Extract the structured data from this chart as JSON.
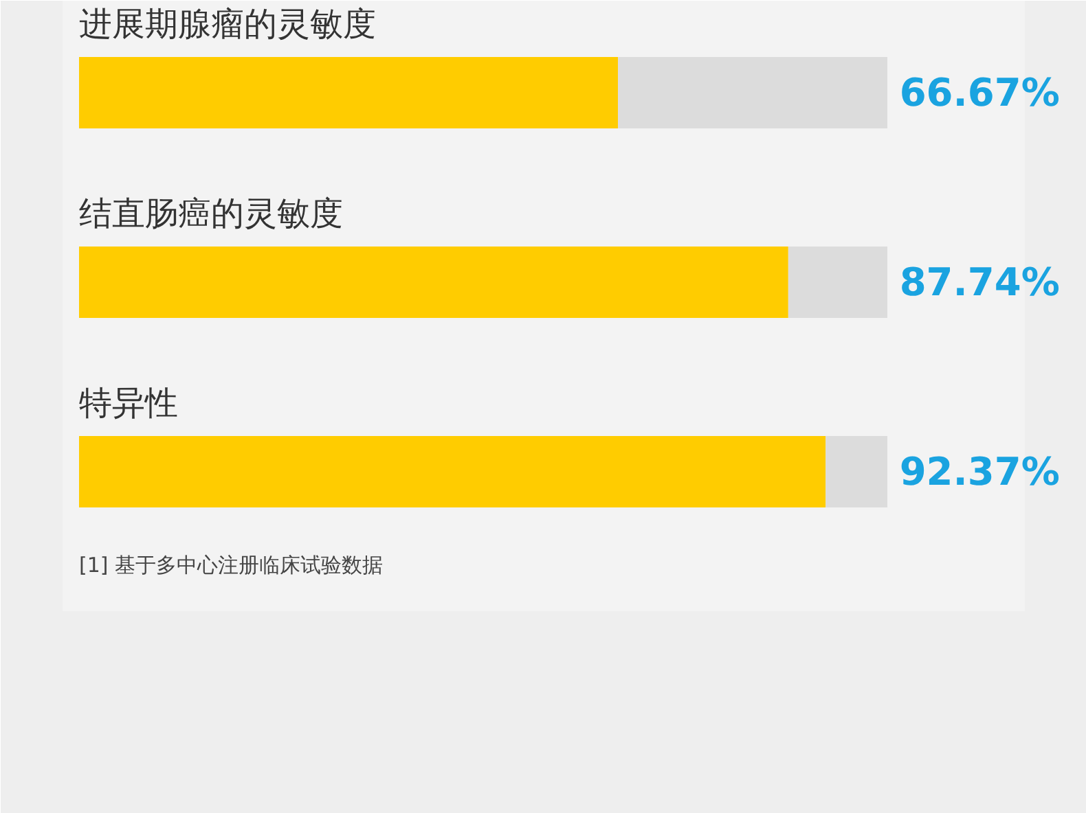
{
  "chart_data": {
    "type": "bar",
    "orientation": "horizontal",
    "stacked": true,
    "categories": [
      "进展期腺瘤的灵敏度",
      "结直肠癌的灵敏度",
      "特异性"
    ],
    "xlim": [
      0,
      100
    ],
    "tick_labels": false,
    "grid": false,
    "series": [
      {
        "color": "#ffcc00",
        "values": [
          66.67,
          87.74,
          92.37
        ],
        "value_labels": [
          "66.67%",
          "87.74%",
          "92.37%"
        ]
      },
      {
        "color": "#dcdcdc",
        "values": [
          33.33,
          12.26,
          7.63
        ]
      }
    ],
    "annotations": [
      "[1] 基于多中心注册临床试验数据"
    ]
  }
}
